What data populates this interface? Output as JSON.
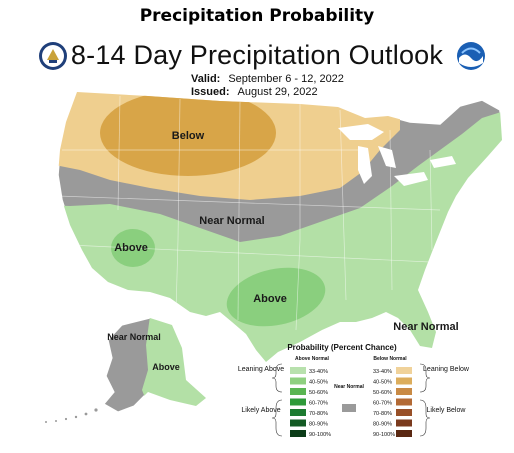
{
  "heading": "Precipitation Probability",
  "map_title": "8-14 Day Precipitation Outlook",
  "valid": {
    "label": "Valid:",
    "value": "September 6 - 12, 2022"
  },
  "issued": {
    "label": "Issued:",
    "value": "August 29, 2022"
  },
  "logos": {
    "left": "department-of-commerce-seal",
    "right": "noaa-logo"
  },
  "map": {
    "region_labels": {
      "below_north": "Below",
      "near_normal_center": "Near Normal",
      "above_southwest": "Above",
      "above_texas": "Above",
      "near_normal_southeast": "Near Normal",
      "near_normal_alaska": "Near Normal",
      "above_alaska": "Above"
    },
    "category_colors": {
      "below_33_40": "#efcf8f",
      "below_40_50": "#d8a548",
      "near_normal": "#9a9a9a",
      "above_33_40": "#b3e0a6",
      "above_40_50": "#8acf7e",
      "land_outline": "#ffffff",
      "water": "#ffffff"
    }
  },
  "legend": {
    "title": "Probability (Percent Chance)",
    "above_header": "Above Normal",
    "below_header": "Below Normal",
    "near_label": "Near Normal",
    "leaning_above": "Leaning Above",
    "likely_above": "Likely Above",
    "leaning_below": "Leaning Below",
    "likely_below": "Likely Below",
    "above_rows": [
      {
        "range": "33-40%",
        "color": "#b8e1ad"
      },
      {
        "range": "40-50%",
        "color": "#8fd080"
      },
      {
        "range": "50-60%",
        "color": "#5ab552"
      },
      {
        "range": "60-70%",
        "color": "#2f9a3a"
      },
      {
        "range": "70-80%",
        "color": "#1c7a30"
      },
      {
        "range": "80-90%",
        "color": "#135a24"
      },
      {
        "range": "90-100%",
        "color": "#0b3c18"
      }
    ],
    "below_rows": [
      {
        "range": "33-40%",
        "color": "#f0d29a"
      },
      {
        "range": "40-50%",
        "color": "#dcad5c"
      },
      {
        "range": "50-60%",
        "color": "#c98a45"
      },
      {
        "range": "60-70%",
        "color": "#b36a35"
      },
      {
        "range": "70-80%",
        "color": "#985028"
      },
      {
        "range": "80-90%",
        "color": "#7a3a1d"
      },
      {
        "range": "90-100%",
        "color": "#5a2812"
      }
    ],
    "near_color": "#9a9a9a"
  }
}
